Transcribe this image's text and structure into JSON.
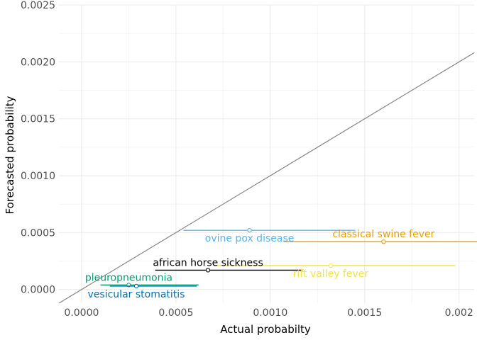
{
  "chart_data": {
    "type": "scatter",
    "title": "",
    "xlabel": "Actual probabilty",
    "ylabel": "Forecasted probability",
    "xlim": [
      -0.00012,
      0.00208
    ],
    "ylim": [
      -0.00012,
      0.0025
    ],
    "x_ticks": [
      0.0,
      0.0005,
      0.001,
      0.0015,
      0.002
    ],
    "x_tick_labels": [
      "0.0000",
      "0.0005",
      "0.0010",
      "0.0015",
      "0.002"
    ],
    "y_ticks": [
      0.0,
      0.0005,
      0.001,
      0.0015,
      0.002,
      0.0025
    ],
    "y_tick_labels": [
      "0.0000",
      "0.0005",
      "0.0010",
      "0.0015",
      "0.0020",
      "0.0025"
    ],
    "grid": true,
    "reference_line": "y = x",
    "reference_line_color": "#808080",
    "legend": "none",
    "series": [
      {
        "name": "ovine pox disease",
        "color": "#56b4e9",
        "x": 0.00089,
        "y": 0.00052,
        "xmin": 0.00054,
        "xmax": 0.00145,
        "label_pos": "below"
      },
      {
        "name": "classical swine fever",
        "color": "#e69f00",
        "x": 0.0016,
        "y": 0.00042,
        "xmin": 0.00107,
        "xmax": 0.00217,
        "label_pos": "above"
      },
      {
        "name": "african horse sickness",
        "color": "#000000",
        "x": 0.00067,
        "y": 0.00017,
        "xmin": 0.00039,
        "xmax": 0.00117,
        "label_pos": "above"
      },
      {
        "name": "rift valley fever",
        "color": "#f0e442",
        "x": 0.00132,
        "y": 0.00021,
        "xmin": 0.0007,
        "xmax": 0.00198,
        "label_pos": "below"
      },
      {
        "name": "pleuropneumonia",
        "color": "#009e73",
        "x": 0.00025,
        "y": 4e-05,
        "xmin": 0.0001,
        "xmax": 0.00062,
        "label_pos": "above"
      },
      {
        "name": "vesicular stomatitis",
        "color": "#0072b2",
        "x": 0.00029,
        "y": 3e-05,
        "xmin": 0.00015,
        "xmax": 0.00061,
        "label_pos": "below"
      }
    ]
  }
}
